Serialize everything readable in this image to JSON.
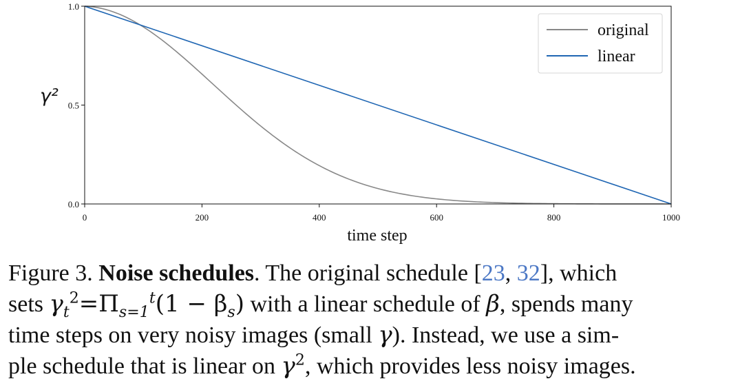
{
  "chart_data": {
    "type": "line",
    "title": "",
    "xlabel": "time step",
    "ylabel": "γ²",
    "xlim": [
      0,
      1000
    ],
    "ylim": [
      0.0,
      1.0
    ],
    "xticks": [
      "0",
      "200",
      "400",
      "600",
      "800",
      "1000"
    ],
    "yticks": [
      "1.0",
      "0.5",
      "0.0"
    ],
    "grid": false,
    "legend_position": "top-right",
    "series": [
      {
        "name": "original",
        "color": "#888888",
        "x": [
          0,
          50,
          100,
          150,
          200,
          250,
          300,
          350,
          400,
          450,
          500,
          550,
          600,
          650,
          700,
          750,
          800,
          850,
          900,
          950,
          1000
        ],
        "y": [
          1.0,
          0.965,
          0.88,
          0.77,
          0.64,
          0.51,
          0.39,
          0.29,
          0.205,
          0.14,
          0.09,
          0.055,
          0.03,
          0.016,
          0.008,
          0.004,
          0.002,
          0.001,
          0.0005,
          0.0002,
          0.0
        ]
      },
      {
        "name": "linear",
        "color": "#1f66b3",
        "x": [
          0,
          1000
        ],
        "y": [
          1.0,
          0.0
        ]
      }
    ]
  },
  "caption": {
    "figure_label": "Figure 3.",
    "bold_title": "Noise schedules",
    "line1_after_title": ". The original schedule [",
    "cite1": "23",
    "cite_sep": ", ",
    "cite2": "32",
    "line1_end": "], which",
    "line2_start": "sets ",
    "line2_math_symbol": "γ",
    "line2_math_sub": "t",
    "line2_math_sup": "2",
    "line2_math_eq": "=Π",
    "line2_prod_sub": "s=1",
    "line2_prod_sup": "t",
    "line2_math_paren": "(1 − β",
    "line2_math_paren_sub": "s",
    "line2_math_close": ")",
    "line2_text": " with a linear schedule of ",
    "line2_beta": "β",
    "line2_end": ", spends many",
    "line3_text": "time steps on very noisy images (small ",
    "line3_gamma": "γ",
    "line3_end": "). Instead, we use a sim-",
    "line4_text": "ple schedule that is linear on ",
    "line4_gamma": "γ",
    "line4_sup": "2",
    "line4_end": ", which provides less noisy images."
  }
}
